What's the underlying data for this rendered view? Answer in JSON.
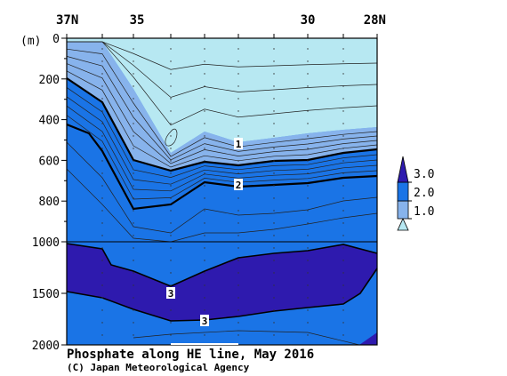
{
  "chart_data": {
    "type": "contour",
    "title": "Phosphate along HE line, May 2016",
    "credit": "(C) Japan Meteorological Agency",
    "y_unit": "(m)",
    "x_ticks": [
      "37N",
      "35",
      "30",
      "28N"
    ],
    "y_ticks_upper": [
      "0",
      "200",
      "400",
      "600",
      "800",
      "1000"
    ],
    "y_ticks_lower": [
      "1500",
      "2000"
    ],
    "y_range": [
      0,
      2000
    ],
    "y_scale_break": 1000,
    "x_range": [
      "37N",
      "28N"
    ],
    "color_levels": [
      {
        "label": "1.0",
        "color": "#b7e8f2"
      },
      {
        "label": "2.0",
        "color": "#87b3ec"
      },
      {
        "label": "3.0",
        "color": "#1a74e6"
      }
    ],
    "legend_top_color": "#2e1aae",
    "contour_labels": [
      "1",
      "2",
      "3",
      "3"
    ],
    "contour_interval": 0.2
  }
}
